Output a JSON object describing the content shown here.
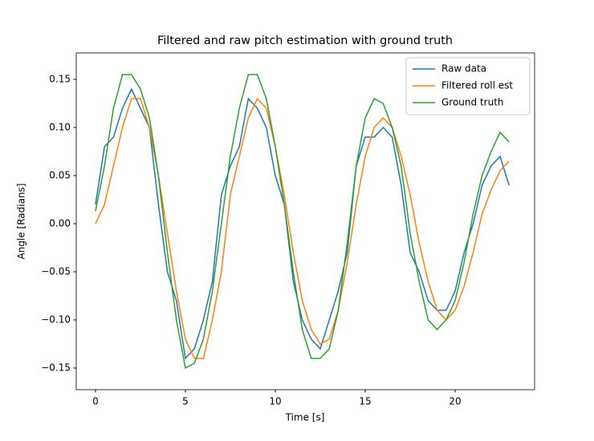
{
  "chart_data": {
    "type": "line",
    "title": "Filtered and raw pitch estimation with ground truth",
    "xlabel": "Time [s]",
    "ylabel": "Angle [Radians]",
    "x": [
      0,
      0.5,
      1,
      1.5,
      2,
      2.5,
      3,
      3.5,
      4,
      4.5,
      5,
      5.5,
      6,
      6.5,
      7,
      7.5,
      8,
      8.5,
      9,
      9.5,
      10,
      10.5,
      11,
      11.5,
      12,
      12.5,
      13,
      13.5,
      14,
      14.5,
      15,
      15.5,
      16,
      16.5,
      17,
      17.5,
      18,
      18.5,
      19,
      19.5,
      20,
      20.5,
      21,
      21.5,
      22,
      22.5,
      23
    ],
    "series": [
      {
        "name": "Raw data",
        "color": "#1f77b4",
        "values": [
          0.02,
          0.08,
          0.09,
          0.12,
          0.14,
          0.12,
          0.1,
          0.02,
          -0.05,
          -0.08,
          -0.14,
          -0.13,
          -0.1,
          -0.06,
          0.03,
          0.06,
          0.08,
          0.13,
          0.12,
          0.1,
          0.05,
          0.02,
          -0.06,
          -0.1,
          -0.12,
          -0.13,
          -0.1,
          -0.07,
          -0.03,
          0.06,
          0.09,
          0.09,
          0.1,
          0.09,
          0.04,
          -0.03,
          -0.05,
          -0.08,
          -0.09,
          -0.09,
          -0.07,
          -0.03,
          0.0,
          0.04,
          0.06,
          0.07,
          0.04
        ]
      },
      {
        "name": "Filtered roll est",
        "color": "#ff7f0e",
        "values": [
          0,
          0.02,
          0.06,
          0.1,
          0.13,
          0.13,
          0.1,
          0.05,
          -0.01,
          -0.07,
          -0.12,
          -0.14,
          -0.14,
          -0.1,
          -0.05,
          0.03,
          0.07,
          0.11,
          0.13,
          0.12,
          0.08,
          0.03,
          -0.03,
          -0.08,
          -0.11,
          -0.125,
          -0.12,
          -0.09,
          -0.04,
          0.02,
          0.07,
          0.1,
          0.11,
          0.1,
          0.07,
          0.03,
          -0.02,
          -0.06,
          -0.09,
          -0.1,
          -0.09,
          -0.065,
          -0.03,
          0.01,
          0.035,
          0.055,
          0.065
        ]
      },
      {
        "name": "Ground truth",
        "color": "#2ca02c",
        "values": [
          0.013,
          0.06,
          0.12,
          0.155,
          0.155,
          0.14,
          0.11,
          0.05,
          -0.03,
          -0.1,
          -0.15,
          -0.145,
          -0.12,
          -0.07,
          0.0,
          0.07,
          0.12,
          0.155,
          0.155,
          0.13,
          0.08,
          0.02,
          -0.05,
          -0.11,
          -0.14,
          -0.14,
          -0.13,
          -0.09,
          -0.02,
          0.06,
          0.11,
          0.13,
          0.125,
          0.1,
          0.06,
          -0.01,
          -0.06,
          -0.1,
          -0.11,
          -0.1,
          -0.08,
          -0.04,
          0.01,
          0.05,
          0.075,
          0.095,
          0.085
        ]
      }
    ],
    "xlim": [
      -1.07,
      24.42
    ],
    "xticks": [
      0,
      5,
      10,
      15,
      20
    ],
    "ylim": [
      -0.1725,
      0.1775
    ],
    "yticks": [
      {
        "value": -0.15,
        "label": "−0.15"
      },
      {
        "value": -0.1,
        "label": "−0.10"
      },
      {
        "value": -0.05,
        "label": "−0.05"
      },
      {
        "value": 0,
        "label": "0.00"
      },
      {
        "value": 0.05,
        "label": "0.05"
      },
      {
        "value": 0.1,
        "label": "0.10"
      },
      {
        "value": 0.15,
        "label": "0.15"
      }
    ],
    "grid": false,
    "legend": "upper right"
  }
}
